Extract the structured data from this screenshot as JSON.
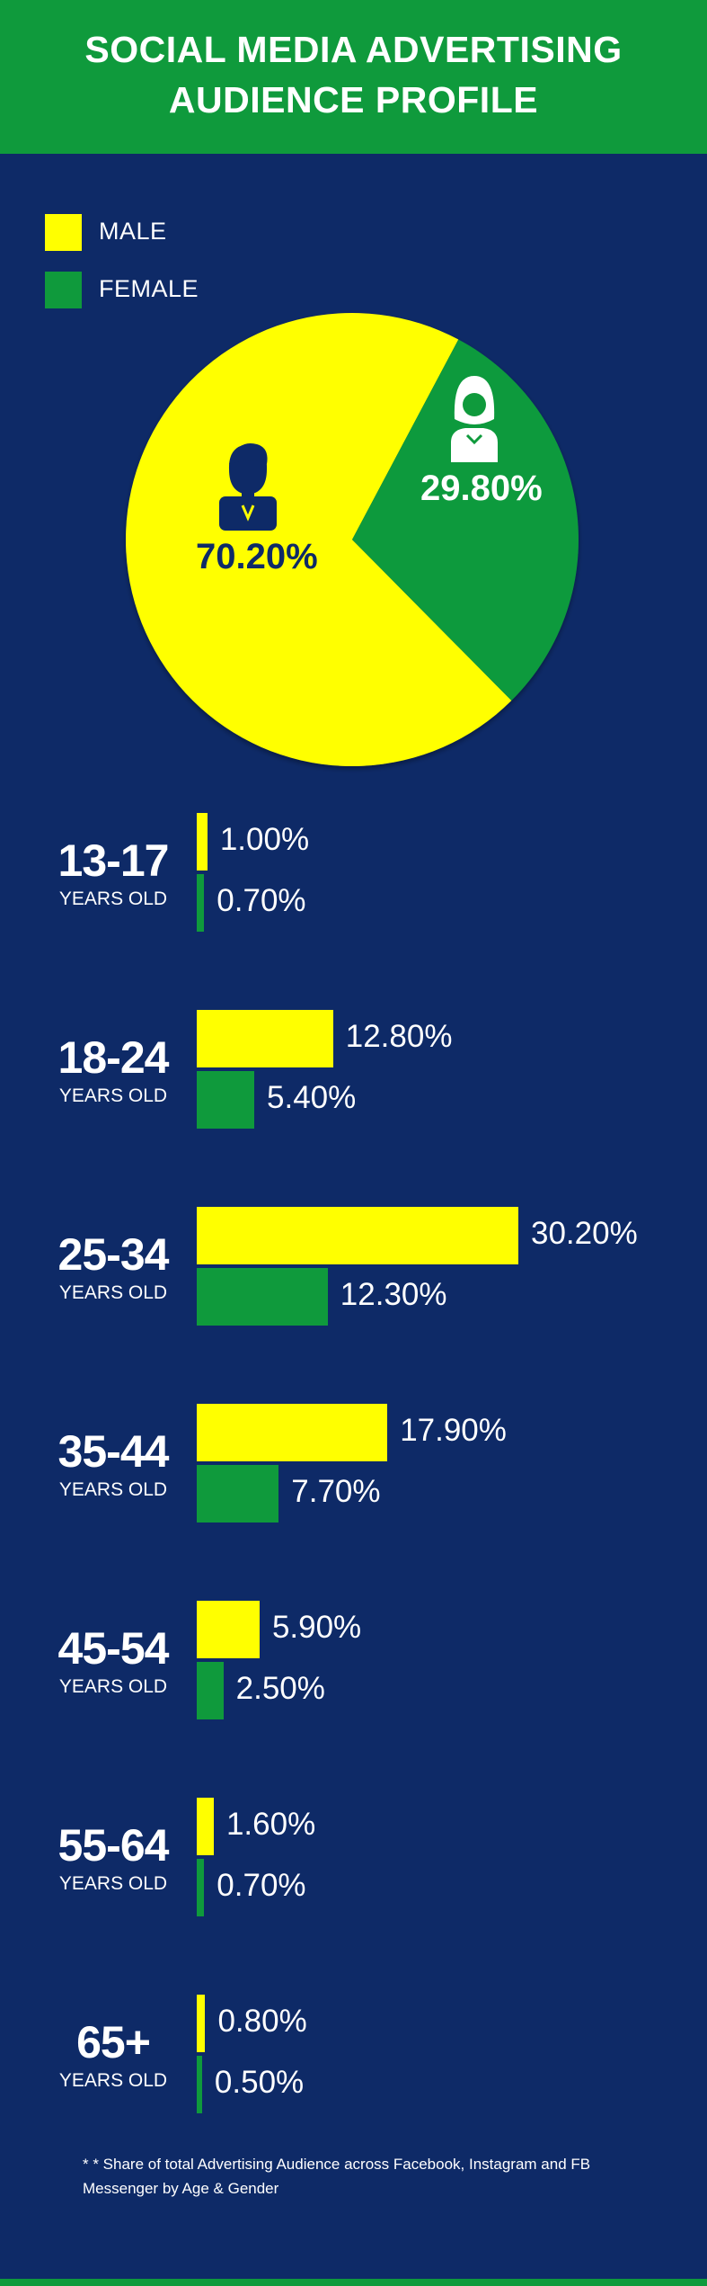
{
  "header": {
    "title_line1": "SOCIAL MEDIA ADVERTISING",
    "title_line2": "AUDIENCE PROFILE"
  },
  "legend": [
    {
      "label": "MALE",
      "color": "#ffff00"
    },
    {
      "label": "FEMALE",
      "color": "#0f9a3c"
    }
  ],
  "chart_data": [
    {
      "type": "pie",
      "slices": [
        {
          "name": "MALE",
          "value": 70.2,
          "label": "70.20%",
          "color": "#ffff00",
          "icon": "male-user-icon"
        },
        {
          "name": "FEMALE",
          "value": 29.8,
          "label": "29.80%",
          "color": "#0f9a3c",
          "icon": "female-user-icon"
        }
      ]
    },
    {
      "type": "bar",
      "orientation": "horizontal",
      "categories": [
        "13-17",
        "18-24",
        "25-34",
        "35-44",
        "45-54",
        "55-64",
        "65+"
      ],
      "category_sublabel": "YEARS OLD",
      "series": [
        {
          "name": "MALE",
          "color": "#ffff00",
          "values": [
            1.0,
            12.8,
            30.2,
            17.9,
            5.9,
            1.6,
            0.8
          ],
          "labels": [
            "1.00%",
            "12.80%",
            "30.20%",
            "17.90%",
            "5.90%",
            "1.60%",
            "0.80%"
          ]
        },
        {
          "name": "FEMALE",
          "color": "#0f9a3c",
          "values": [
            0.7,
            5.4,
            12.3,
            7.7,
            2.5,
            0.7,
            0.5
          ],
          "labels": [
            "0.70%",
            "5.40%",
            "12.30%",
            "7.70%",
            "2.50%",
            "0.70%",
            "0.50%"
          ]
        }
      ]
    }
  ],
  "footnote": "* * Share of total Advertising Audience across Facebook, Instagram and FB Messenger by Age & Gender"
}
